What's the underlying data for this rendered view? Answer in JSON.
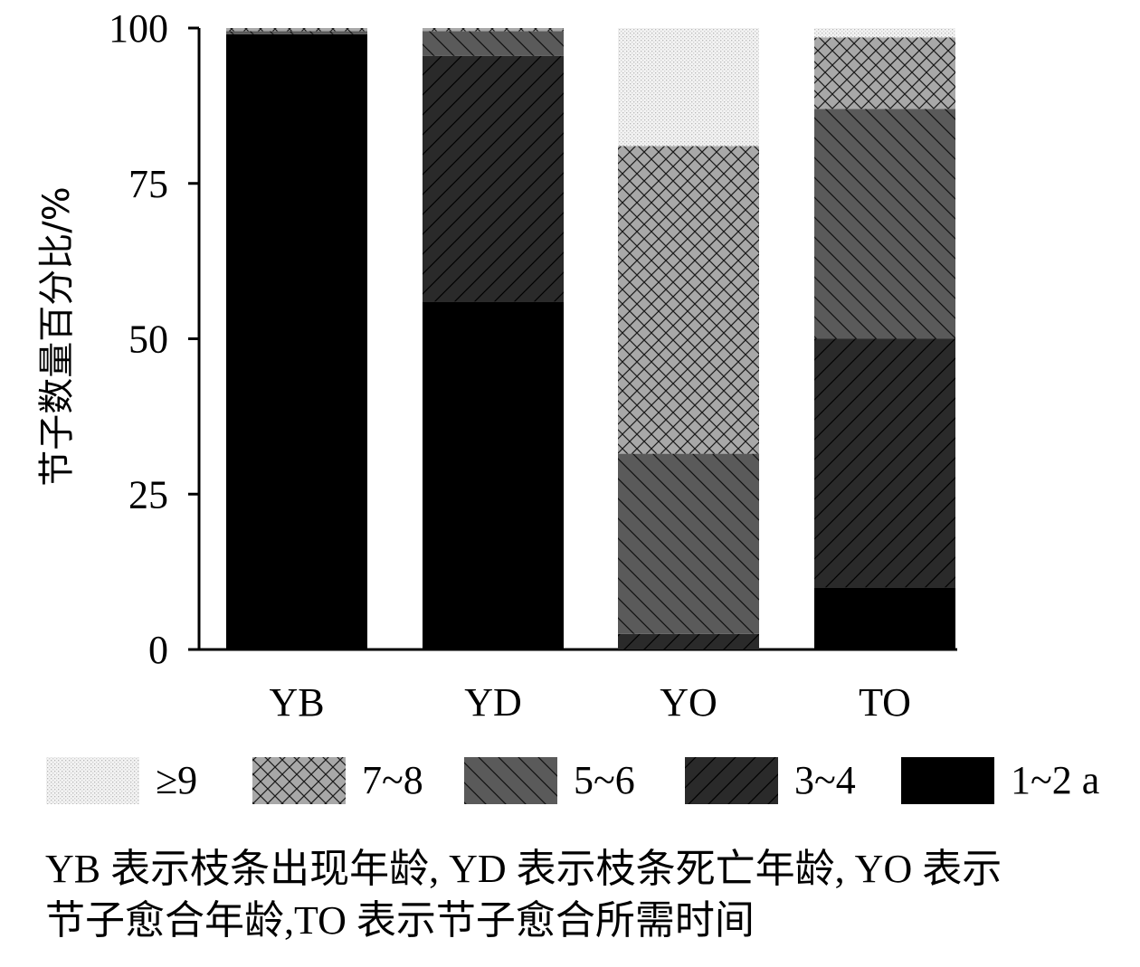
{
  "chart_data": {
    "type": "bar",
    "stacked": true,
    "categories": [
      "YB",
      "YD",
      "YO",
      "TO"
    ],
    "ylabel": "节子数量百分比/%",
    "ylim": [
      0,
      100
    ],
    "yticks": [
      "100",
      "75",
      "50",
      "25",
      "0"
    ],
    "grid": false,
    "legend_position": "bottom",
    "series": [
      {
        "name": "1~2 a",
        "values": [
          99,
          56,
          0,
          10
        ],
        "color": "#000000",
        "pattern": "solid"
      },
      {
        "name": "3~4",
        "values": [
          0,
          39.5,
          2.5,
          40
        ],
        "color": "#2a2a2a",
        "pattern": "diagonal-forward"
      },
      {
        "name": "5~6",
        "values": [
          0.5,
          4,
          29,
          37
        ],
        "color": "#5a5a5a",
        "pattern": "diagonal-back"
      },
      {
        "name": "7~8",
        "values": [
          0.5,
          0.5,
          49.5,
          11.5
        ],
        "color": "#a8a8a8",
        "pattern": "crosshatch"
      },
      {
        "name": "≥9",
        "values": [
          0,
          0,
          19,
          1.5
        ],
        "color": "#ececec",
        "pattern": "dots"
      }
    ]
  },
  "caption": {
    "line1": "YB 表示枝条出现年龄, YD 表示枝条死亡年龄, YO 表示",
    "line2": "节子愈合年龄,TO 表示节子愈合所需时间"
  }
}
